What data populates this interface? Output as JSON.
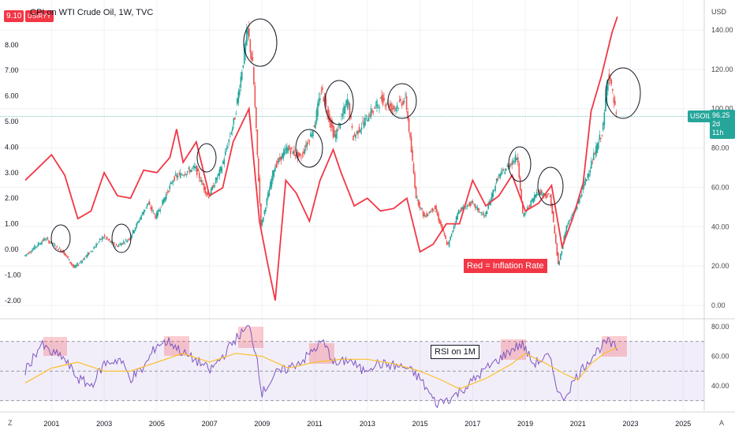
{
  "header": {
    "title": "CPI on WTI Crude Oil, 1W, TVC",
    "left_badge": "9.10",
    "left_symbol": "USIRYY"
  },
  "right_axis": {
    "currency": "USD",
    "ticks": [
      "140.00",
      "120.00",
      "100.00",
      "80.00",
      "60.00",
      "40.00",
      "20.00",
      "0.00"
    ]
  },
  "left_axis": {
    "ticks": [
      "8.00",
      "7.00",
      "6.00",
      "5.00",
      "4.00",
      "3.00",
      "2.00",
      "1.00",
      "0.00",
      "-1.00",
      "-2.00"
    ]
  },
  "rsi_axis": {
    "ticks": [
      "80.00",
      "60.00",
      "40.00"
    ]
  },
  "price_tag": {
    "symbol": "USOIL",
    "value": "96.25",
    "countdown": "2d 11h"
  },
  "annotations": {
    "inflation": "Red = Inflation Rate",
    "rsi": "RSI on 1M"
  },
  "x_labels": [
    "2001",
    "2003",
    "2005",
    "2007",
    "2009",
    "2011",
    "2013",
    "2015",
    "2017",
    "2019",
    "2021",
    "2023",
    "2025"
  ],
  "footer": {
    "left": "Z",
    "right": "A"
  },
  "colors": {
    "inflation": "#f23645",
    "rsi": "#7e57c2",
    "rsi_ma": "#fbc02d",
    "candle_up": "#26a69a",
    "candle_down": "#ef5350",
    "badge": "#26a69a"
  },
  "chart_data": [
    {
      "type": "line",
      "title": "CPI on WTI Crude Oil, 1W, TVC",
      "series": [
        {
          "name": "USIRYY",
          "x": [
            2000.0,
            2000.5,
            2001.0,
            2001.5,
            2002.0,
            2002.5,
            2003.0,
            2003.5,
            2004.0,
            2004.5,
            2005.0,
            2005.5,
            2005.75,
            2006.0,
            2006.5,
            2007.0,
            2007.5,
            2007.9,
            2008.5,
            2008.9,
            2009.2,
            2009.5,
            2009.9,
            2010.3,
            2010.8,
            2011.2,
            2011.7,
            2012.0,
            2012.5,
            2013.0,
            2013.5,
            2014.0,
            2014.5,
            2015.0,
            2015.5,
            2016.0,
            2016.5,
            2017.0,
            2017.5,
            2018.0,
            2018.5,
            2019.0,
            2019.5,
            2020.0,
            2020.4,
            2020.8,
            2021.2,
            2021.5,
            2021.9,
            2022.3,
            2022.5
          ],
          "values": [
            2.7,
            3.2,
            3.7,
            2.9,
            1.2,
            1.5,
            3.0,
            2.1,
            2.0,
            3.1,
            3.0,
            3.6,
            4.7,
            3.4,
            4.2,
            2.1,
            2.4,
            4.2,
            5.5,
            1.1,
            -0.5,
            -2.0,
            2.7,
            2.2,
            1.1,
            2.7,
            3.9,
            3.0,
            1.7,
            2.0,
            1.5,
            1.6,
            2.0,
            -0.1,
            0.2,
            1.0,
            1.0,
            2.7,
            1.7,
            2.1,
            2.9,
            1.5,
            1.8,
            2.5,
            0.1,
            1.2,
            2.6,
            5.4,
            6.8,
            8.5,
            9.1
          ]
        },
        {
          "name": "USOIL",
          "x": [
            2000.0,
            2000.8,
            2001.5,
            2001.9,
            2002.5,
            2003.0,
            2003.5,
            2004.0,
            2004.7,
            2005.0,
            2005.7,
            2006.5,
            2007.0,
            2007.5,
            2008.0,
            2008.5,
            2008.7,
            2009.0,
            2009.5,
            2010.0,
            2010.5,
            2011.0,
            2011.3,
            2011.8,
            2012.3,
            2012.5,
            2013.0,
            2013.6,
            2014.0,
            2014.5,
            2014.9,
            2015.2,
            2015.6,
            2016.1,
            2016.5,
            2017.0,
            2017.5,
            2018.0,
            2018.75,
            2018.95,
            2019.5,
            2020.0,
            2020.3,
            2020.6,
            2021.0,
            2021.5,
            2022.0,
            2022.2,
            2022.5
          ],
          "values": [
            25,
            34,
            27,
            19,
            27,
            35,
            30,
            34,
            52,
            45,
            65,
            70,
            55,
            70,
            95,
            140,
            120,
            40,
            70,
            80,
            75,
            90,
            110,
            85,
            105,
            85,
            95,
            105,
            100,
            105,
            55,
            45,
            50,
            30,
            48,
            52,
            45,
            65,
            76,
            45,
            58,
            55,
            20,
            40,
            50,
            70,
            90,
            120,
            96
          ]
        }
      ],
      "xlim": [
        2000,
        2025.8
      ],
      "left_ylim": [
        -2,
        9.5
      ],
      "right_ylim": [
        0,
        150
      ],
      "right_ylabel": "USD",
      "annotations": [
        "Red = Inflation Rate"
      ]
    },
    {
      "type": "line",
      "title": "",
      "series": [
        {
          "name": "",
          "x": [
            2000.0,
            2000.6,
            2001.0,
            2001.4,
            2002.0,
            2002.5,
            2003.0,
            2003.6,
            2004.0,
            2004.5,
            2005.0,
            2005.5,
            2006.0,
            2006.7,
            2007.0,
            2007.5,
            2008.0,
            2008.5,
            2008.8,
            2009.0,
            2009.5,
            2010.0,
            2010.6,
            2011.0,
            2011.3,
            2011.8,
            2012.3,
            2012.8,
            2013.3,
            2013.9,
            2014.5,
            2015.0,
            2015.6,
            2016.2,
            2016.8,
            2017.4,
            2018.0,
            2018.6,
            2018.9,
            2019.3,
            2019.9,
            2020.2,
            2020.4,
            2020.8,
            2021.3,
            2021.8,
            2022.1,
            2022.5
          ],
          "values": [
            50,
            68,
            62,
            60,
            45,
            40,
            55,
            58,
            45,
            52,
            68,
            70,
            62,
            55,
            50,
            60,
            72,
            80,
            60,
            35,
            48,
            52,
            58,
            65,
            70,
            54,
            58,
            50,
            55,
            54,
            52,
            45,
            28,
            32,
            40,
            50,
            58,
            66,
            68,
            55,
            60,
            40,
            30,
            42,
            55,
            65,
            70,
            65
          ]
        },
        {
          "name": "",
          "x": [
            2000.0,
            2001.0,
            2002.0,
            2003.0,
            2004.0,
            2005.0,
            2006.0,
            2007.0,
            2008.0,
            2009.0,
            2010.0,
            2011.0,
            2012.0,
            2013.0,
            2014.0,
            2015.0,
            2015.8,
            2016.5,
            2017.5,
            2018.5,
            2019.0,
            2019.8,
            2020.5,
            2021.0,
            2021.5,
            2022.0,
            2022.5
          ],
          "values": [
            42,
            52,
            56,
            50,
            50,
            56,
            62,
            56,
            62,
            60,
            52,
            56,
            58,
            58,
            55,
            50,
            44,
            38,
            45,
            55,
            62,
            55,
            48,
            44,
            55,
            62,
            66
          ]
        }
      ],
      "xlim": [
        2000,
        2025.8
      ],
      "ylim": [
        28,
        84
      ],
      "levels": [
        70,
        50,
        30
      ],
      "annotations": [
        "RSI on 1M"
      ]
    }
  ]
}
